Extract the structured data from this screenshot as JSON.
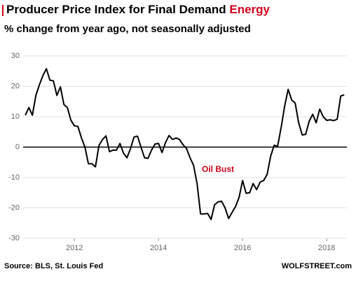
{
  "chart_data": {
    "type": "line",
    "title": "Producer Price Index for Final Demand",
    "title_highlight": "Energy",
    "subtitle": "% change from year ago, not seasonally adjusted",
    "annotation": "Oil Bust",
    "source": "Source: BLS, St. Louis Fed",
    "credit": "WOLFSTREET.com",
    "x": [
      2010.833,
      2010.917,
      2011.0,
      2011.083,
      2011.167,
      2011.25,
      2011.333,
      2011.417,
      2011.5,
      2011.583,
      2011.667,
      2011.75,
      2011.833,
      2011.917,
      2012.0,
      2012.083,
      2012.167,
      2012.25,
      2012.333,
      2012.417,
      2012.5,
      2012.583,
      2012.667,
      2012.75,
      2012.833,
      2012.917,
      2013.0,
      2013.083,
      2013.167,
      2013.25,
      2013.333,
      2013.417,
      2013.5,
      2013.583,
      2013.667,
      2013.75,
      2013.833,
      2013.917,
      2014.0,
      2014.083,
      2014.167,
      2014.25,
      2014.333,
      2014.417,
      2014.5,
      2014.583,
      2014.667,
      2014.75,
      2014.833,
      2014.917,
      2015.0,
      2015.083,
      2015.167,
      2015.25,
      2015.333,
      2015.417,
      2015.5,
      2015.583,
      2015.667,
      2015.75,
      2015.833,
      2015.917,
      2016.0,
      2016.083,
      2016.167,
      2016.25,
      2016.333,
      2016.417,
      2016.5,
      2016.583,
      2016.667,
      2016.75,
      2016.833,
      2016.917,
      2017.0,
      2017.083,
      2017.167,
      2017.25,
      2017.333,
      2017.417,
      2017.5,
      2017.583,
      2017.667,
      2017.75,
      2017.833,
      2017.917,
      2018.0,
      2018.083,
      2018.167,
      2018.25,
      2018.333,
      2018.417
    ],
    "series": [
      {
        "color": "#000000",
        "values": [
          10.5,
          13,
          10.5,
          17,
          20.5,
          23.5,
          25.8,
          22,
          21.8,
          17,
          19.8,
          14,
          13,
          8.8,
          7,
          6.8,
          3,
          0,
          -5.5,
          -5.5,
          -6.5,
          0.5,
          2.5,
          3.7,
          -1.5,
          -1,
          -1,
          1.2,
          -2,
          -3.5,
          -0.5,
          3.3,
          3.6,
          0,
          -3.5,
          -3.7,
          -1,
          1,
          1.2,
          -1.8,
          1.5,
          3.8,
          2.5,
          3,
          2.5,
          0.8,
          -0.5,
          -3.5,
          -6,
          -12,
          -22,
          -22,
          -21.8,
          -23.8,
          -19,
          -18,
          -17.8,
          -20,
          -23.5,
          -21.5,
          -19.5,
          -16.5,
          -11,
          -15.2,
          -15,
          -12,
          -14,
          -11.5,
          -11,
          -9,
          -3,
          0.6,
          0.3,
          6.5,
          13.5,
          19,
          15.5,
          14.5,
          8,
          4,
          4.2,
          8.5,
          10.8,
          8,
          12.5,
          10,
          8.8,
          9,
          8.7,
          9.2,
          16.8,
          17.2
        ]
      }
    ],
    "xlim": [
      2010.78,
      2018.48
    ],
    "ylim": [
      -30,
      30
    ],
    "xticks": [
      2012,
      2014,
      2016,
      2018
    ],
    "yticks": [
      -30,
      -20,
      -10,
      0,
      10,
      20,
      30
    ],
    "grid": true
  }
}
